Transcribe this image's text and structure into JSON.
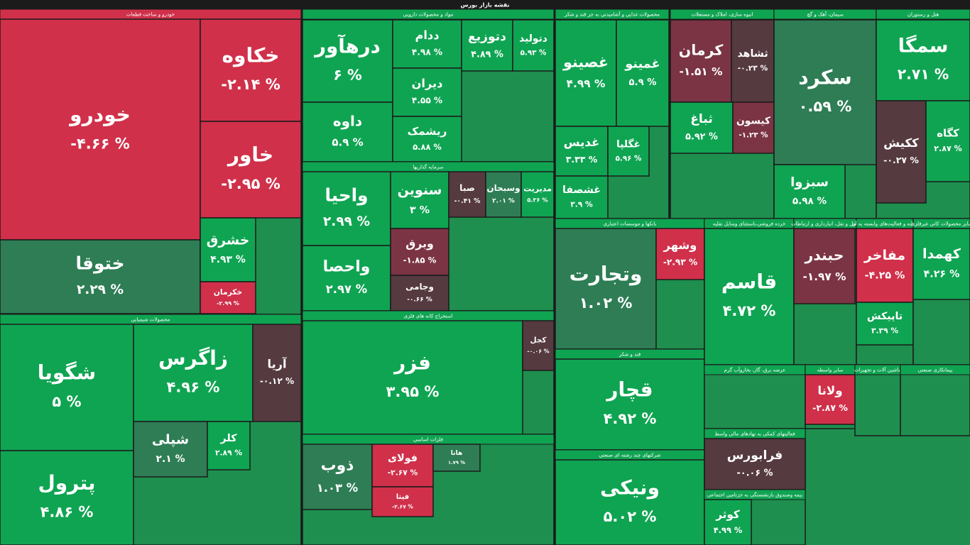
{
  "chart_data": {
    "type": "treemap",
    "title": "نقشه بازار بورس",
    "sectors": [
      {
        "name": "خودرو و ساخت قطعات",
        "tiles": [
          {
            "name": "خودرو",
            "value": -4.66,
            "value_label": "-۴.۶۶ %"
          },
          {
            "name": "خکاوه",
            "value": -2.14,
            "value_label": "-۲.۱۴ %"
          },
          {
            "name": "خاور",
            "value": -2.95,
            "value_label": "-۲.۹۵ %"
          },
          {
            "name": "ختوقا",
            "value": 2.29,
            "value_label": "۲.۲۹ %"
          },
          {
            "name": "خشرق",
            "value": 4.93,
            "value_label": "۴.۹۳ %"
          },
          {
            "name": "خکرمان",
            "value": -2.99,
            "value_label": "-۲.۹۹ %"
          }
        ]
      },
      {
        "name": "مواد و محصولات دارویی",
        "tiles": [
          {
            "name": "درهآور",
            "value": 6,
            "value_label": "۶ %"
          },
          {
            "name": "داوه",
            "value": 5.9,
            "value_label": "۵.۹ %"
          },
          {
            "name": "ددام",
            "value": 4.98,
            "value_label": "۴.۹۸ %"
          },
          {
            "name": "دیران",
            "value": 4.55,
            "value_label": "۴.۵۵ %"
          },
          {
            "name": "ریشمک",
            "value": 5.88,
            "value_label": "۵.۸۸ %"
          },
          {
            "name": "دتوزیع",
            "value": 4.89,
            "value_label": "۴.۸۹ %"
          },
          {
            "name": "دتولید",
            "value": 5.93,
            "value_label": "۵.۹۳ %"
          }
        ]
      },
      {
        "name": "محصولات غذایی و آشامیدنی به جز قند و شکر",
        "tiles": [
          {
            "name": "غصینو",
            "value": 4.99,
            "value_label": "۴.۹۹ %"
          },
          {
            "name": "غمینو",
            "value": 5.9,
            "value_label": "۵.۹ %"
          },
          {
            "name": "غدیس",
            "value": 3.33,
            "value_label": "۳.۳۳ %"
          },
          {
            "name": "غشصفا",
            "value": 3.9,
            "value_label": "۳.۹ %"
          },
          {
            "name": "غگلپا",
            "value": 5.96,
            "value_label": "۵.۹۶ %"
          }
        ]
      },
      {
        "name": "انبوه سازی، املاک و مستغلات",
        "tiles": [
          {
            "name": "کرمان",
            "value": -1.51,
            "value_label": "-۱.۵۱ %"
          },
          {
            "name": "ثشاهد",
            "value": -0.23,
            "value_label": "-۰.۲۳ %"
          },
          {
            "name": "ثباغ",
            "value": 5.92,
            "value_label": "۵.۹۲ %"
          },
          {
            "name": "کیسون",
            "value": -1.23,
            "value_label": "-۱.۲۳ %"
          }
        ]
      },
      {
        "name": "سیمان، آهک و گچ",
        "tiles": [
          {
            "name": "سکرد",
            "value": 0.59,
            "value_label": "۰.۵۹ %"
          },
          {
            "name": "سبزوا",
            "value": 5.98,
            "value_label": "۵.۹۸ %"
          }
        ]
      },
      {
        "name": "هتل و رستوران",
        "tiles": [
          {
            "name": "سمگا",
            "value": 2.71,
            "value_label": "۲.۷۱ %"
          },
          {
            "name": "ککیش",
            "value": -0.27,
            "value_label": "-۰.۲۷ %"
          },
          {
            "name": "کگاه",
            "value": 2.87,
            "value_label": "۲.۸۷ %"
          }
        ]
      },
      {
        "name": "سرمایه گذاریها",
        "tiles": [
          {
            "name": "واحیا",
            "value": 2.99,
            "value_label": "۲.۹۹ %"
          },
          {
            "name": "واحصا",
            "value": 2.97,
            "value_label": "۲.۹۷ %"
          },
          {
            "name": "سنوین",
            "value": 3,
            "value_label": "۳ %"
          },
          {
            "name": "وبرق",
            "value": -1.85,
            "value_label": "-۱.۸۵ %"
          },
          {
            "name": "وجامی",
            "value": -0.66,
            "value_label": "-۰.۶۶ %"
          },
          {
            "name": "صبا",
            "value": -0.41,
            "value_label": "-۰.۴۱ %"
          },
          {
            "name": "وسبحان",
            "value": 2.01,
            "value_label": "۲.۰۱ %"
          },
          {
            "name": "مدیریت",
            "value": 5.36,
            "value_label": "۵.۳۶ %"
          }
        ]
      },
      {
        "name": "محصولات شیمیایی",
        "tiles": [
          {
            "name": "شگویا",
            "value": 5,
            "value_label": "۵ %"
          },
          {
            "name": "پترول",
            "value": 4.86,
            "value_label": "۴.۸۶ %"
          },
          {
            "name": "زاگرس",
            "value": 4.96,
            "value_label": "۴.۹۶ %"
          },
          {
            "name": "آریا",
            "value": -0.12,
            "value_label": "-۰.۱۲ %"
          },
          {
            "name": "شپلی",
            "value": 2.1,
            "value_label": "۲.۱ %"
          },
          {
            "name": "کلر",
            "value": 2.89,
            "value_label": "۲.۸۹ %"
          }
        ]
      },
      {
        "name": "استخراج کانه های فلزی",
        "tiles": [
          {
            "name": "فزر",
            "value": 3.95,
            "value_label": "۳.۹۵ %"
          },
          {
            "name": "کجل",
            "value": -0.06,
            "value_label": "-۰.۰۶ %"
          }
        ]
      },
      {
        "name": "فلزات اساسی",
        "tiles": [
          {
            "name": "ذوب",
            "value": 1.03,
            "value_label": "۱.۰۳ %"
          },
          {
            "name": "فولای",
            "value": -2.67,
            "value_label": "-۲.۶۷ %"
          },
          {
            "name": "فیتا",
            "value": -2.67,
            "value_label": "-۲.۶۷ %"
          },
          {
            "name": "هانا",
            "value": 1.79,
            "value_label": "۱.۷۹ %"
          }
        ]
      },
      {
        "name": "بانکها و موسسات اعتباری",
        "tiles": [
          {
            "name": "وتجارت",
            "value": 1.02,
            "value_label": "۱.۰۲ %"
          },
          {
            "name": "وشهر",
            "value": -2.93,
            "value_label": "-۲.۹۳ %"
          }
        ]
      },
      {
        "name": "قند و شکر",
        "tiles": [
          {
            "name": "قچار",
            "value": 4.92,
            "value_label": "۴.۹۲ %"
          }
        ]
      },
      {
        "name": "شرکتهای چند رشته ای صنعتی",
        "tiles": [
          {
            "name": "ونیکی",
            "value": 5.02,
            "value_label": "۵.۰۲ %"
          }
        ]
      },
      {
        "name": "خرده فروشی،باستثنای وسایل نقلیه",
        "tiles": [
          {
            "name": "قاسم",
            "value": 4.72,
            "value_label": "۴.۷۲ %"
          }
        ]
      },
      {
        "name": "حمل و نقل، انبارداری و ارتباطات",
        "tiles": [
          {
            "name": "حبندر",
            "value": -1.97,
            "value_label": "-۱.۹۷ %"
          }
        ]
      },
      {
        "name": "رایانه و فعالیت‌های وابسته به آن",
        "tiles": [
          {
            "name": "مفاخر",
            "value": -4.25,
            "value_label": "-۴.۲۵ %"
          },
          {
            "name": "تاپیکش",
            "value": 3.39,
            "value_label": "۳.۳۹ %"
          }
        ]
      },
      {
        "name": "سایر محصولات کانی غیرفلزی",
        "tiles": [
          {
            "name": "کهمدا",
            "value": 4.26,
            "value_label": "۴.۲۶ %"
          }
        ]
      },
      {
        "name": "عرضه برق، گاز، بخاروآب گرم",
        "tiles": []
      },
      {
        "name": "سایر واسطه",
        "tiles": [
          {
            "name": "ولانا",
            "value": -2.87,
            "value_label": "-۲.۸۷ %"
          }
        ]
      },
      {
        "name": "ماشین آلات و تجهیزات",
        "tiles": []
      },
      {
        "name": "پیمانکاری صنعتی",
        "tiles": []
      },
      {
        "name": "فعالیتهای کمکی به نهادهای مالی واسط",
        "tiles": [
          {
            "name": "فرابورس",
            "value": -0.06,
            "value_label": "-۰.۰۶ %"
          }
        ]
      },
      {
        "name": "بیمه وصندوق بازنشستگی به جزتامین اجتماعی",
        "tiles": [
          {
            "name": "کوثر",
            "value": 4.99,
            "value_label": "۴.۹۹ %"
          }
        ]
      }
    ]
  }
}
